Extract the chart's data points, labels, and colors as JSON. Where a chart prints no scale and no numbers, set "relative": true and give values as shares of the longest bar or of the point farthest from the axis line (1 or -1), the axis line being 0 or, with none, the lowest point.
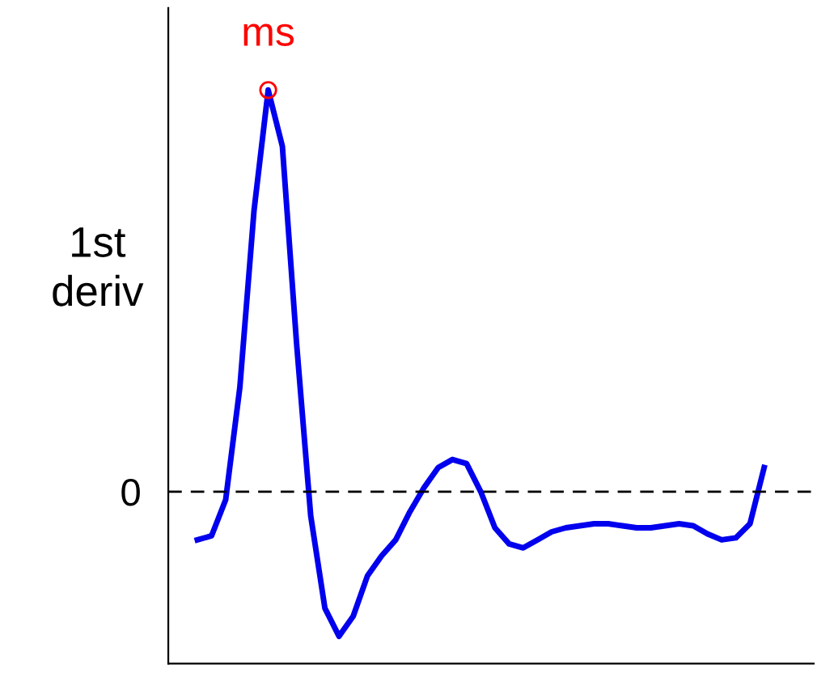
{
  "chart_data": {
    "type": "line",
    "relative": true,
    "ylabel": "1st deriv",
    "categories": [
      null,
      null,
      null,
      null,
      null,
      null,
      null,
      null,
      null,
      null,
      null,
      null,
      null,
      null,
      null,
      null,
      null,
      null,
      null,
      null,
      null,
      null,
      null,
      null,
      null,
      null,
      null,
      null,
      null,
      null,
      null,
      null,
      null,
      null,
      null,
      null,
      null,
      null,
      null,
      null,
      null
    ],
    "series": [
      {
        "color": "#0000ee",
        "values": [
          -0.12,
          -0.11,
          -0.02,
          0.26,
          0.7,
          1.0,
          0.86,
          0.37,
          -0.06,
          -0.29,
          -0.36,
          -0.31,
          -0.21,
          -0.16,
          -0.12,
          -0.05,
          0.01,
          0.06,
          0.08,
          0.07,
          0.0,
          -0.09,
          -0.13,
          -0.14,
          -0.12,
          -0.1,
          -0.09,
          -0.085,
          -0.08,
          -0.08,
          -0.085,
          -0.09,
          -0.09,
          -0.085,
          -0.08,
          -0.085,
          -0.105,
          -0.12,
          -0.115,
          -0.08,
          0.06
        ]
      }
    ],
    "ref_lines": [
      {
        "axis": "y",
        "value": 0,
        "label": "0",
        "color": "#000000",
        "line_style": "dashed"
      }
    ],
    "annotations": [
      "ms"
    ]
  }
}
